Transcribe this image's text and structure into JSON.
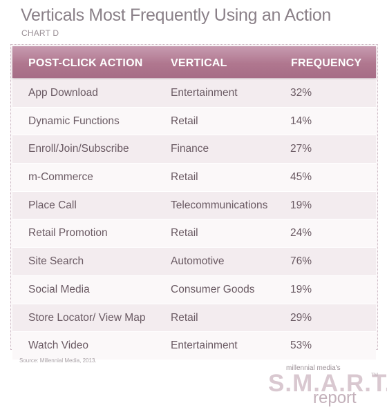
{
  "title": "Verticals Most Frequently Using an Action",
  "subtitle": "CHART D",
  "table": {
    "headers": [
      "POST-CLICK ACTION",
      "VERTICAL",
      "FREQUENCY"
    ],
    "rows": [
      [
        "App Download",
        "Entertainment",
        "32%"
      ],
      [
        "Dynamic Functions",
        "Retail",
        "14%"
      ],
      [
        "Enroll/Join/Subscribe",
        "Finance",
        "27%"
      ],
      [
        "m-Commerce",
        "Retail",
        "45%"
      ],
      [
        "Place Call",
        "Telecommunications",
        "19%"
      ],
      [
        "Retail Promotion",
        "Retail",
        "24%"
      ],
      [
        "Site Search",
        "Automotive",
        "76%"
      ],
      [
        "Social Media",
        "Consumer Goods",
        "19%"
      ],
      [
        "Store Locator/ View Map",
        "Retail",
        "29%"
      ],
      [
        "Watch Video",
        "Entertainment",
        "53%"
      ]
    ]
  },
  "source": "Source: Millennial Media, 2013.",
  "brand": {
    "small": "millennial media's",
    "big": "S.M.A.R.T.",
    "tm": "TM",
    "report": "report"
  },
  "colors": {
    "header_bg": "#b0778f",
    "row_alt": "#f3ecef"
  }
}
